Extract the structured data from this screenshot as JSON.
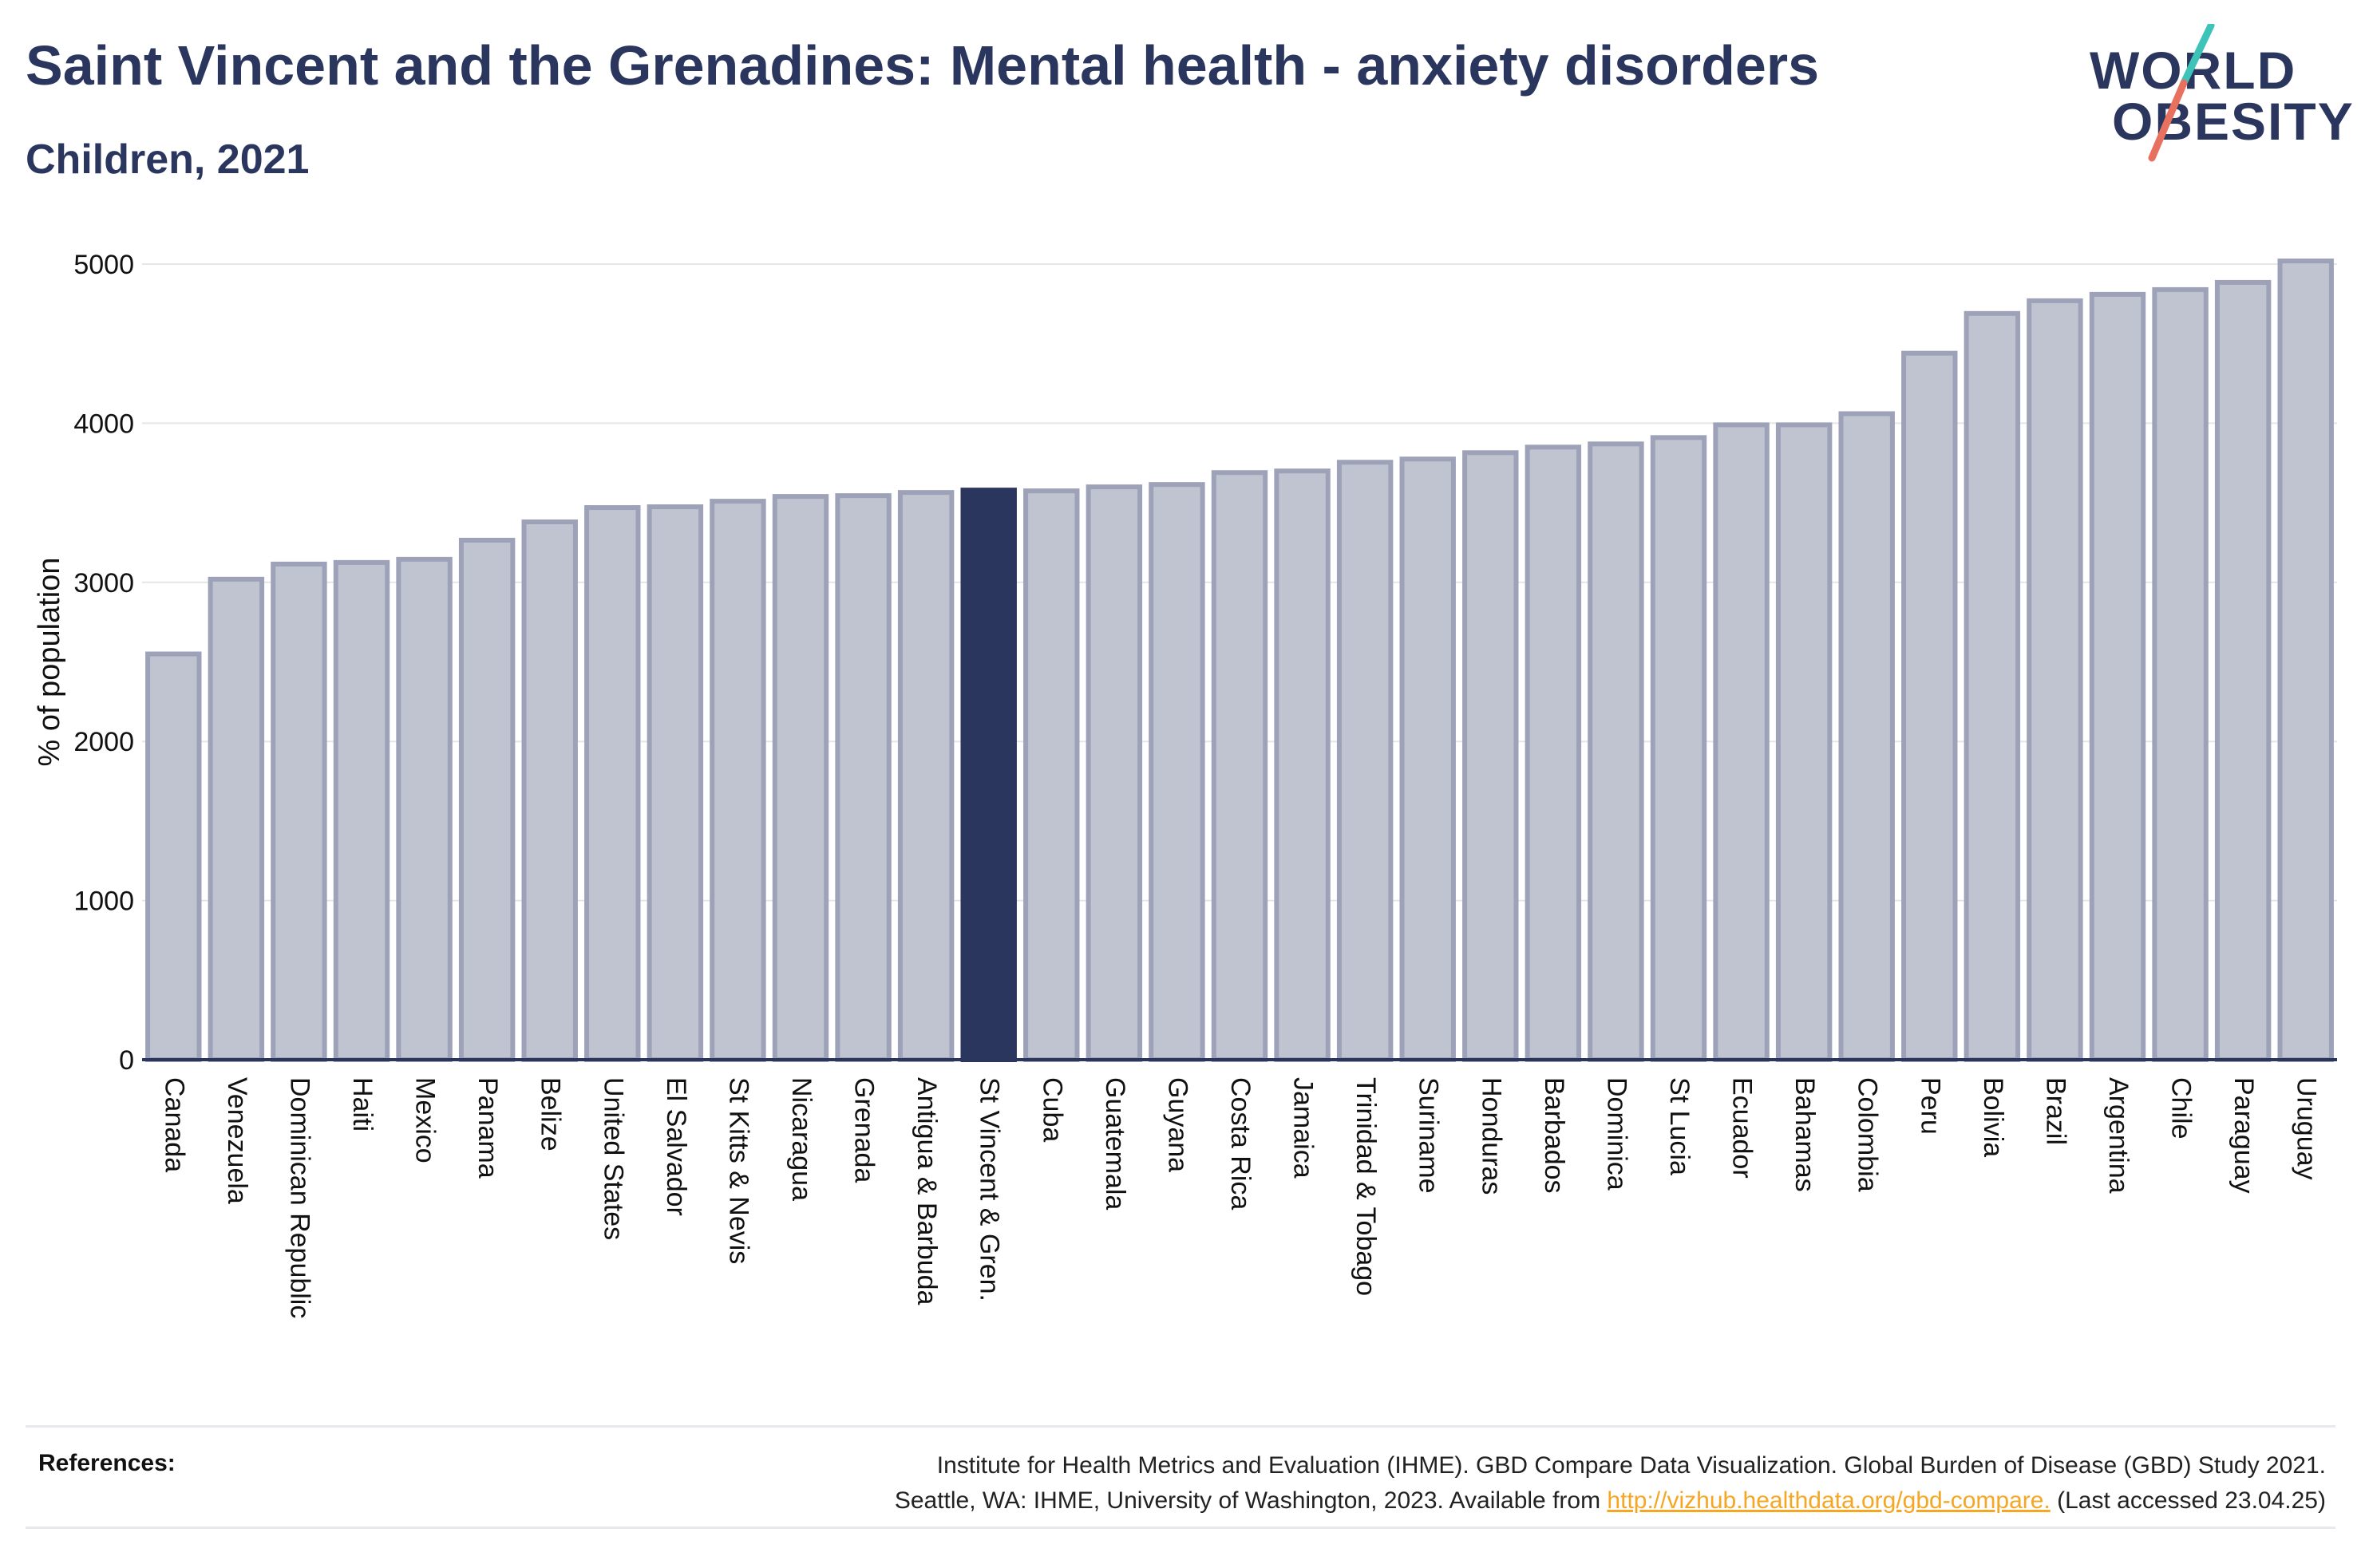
{
  "header": {
    "title": "Saint Vincent and the Grenadines: Mental health - anxiety disorders",
    "subtitle": "Children, 2021"
  },
  "logo": {
    "line1": "WORLD",
    "line2": "OBESITY"
  },
  "colors": {
    "highlight_bar": "#2b365e",
    "other_bar_fill": "#c0c3d0",
    "other_bar_stroke": "#9da2b8",
    "title": "#2b365e",
    "link": "#f5a623",
    "logo_teal": "#3ec3b8",
    "logo_coral": "#e8705f"
  },
  "chart_data": {
    "type": "bar",
    "ylabel": "% of population",
    "ylim": [
      0,
      5000
    ],
    "yticks": [
      0,
      1000,
      2000,
      3000,
      4000,
      5000
    ],
    "highlight": "St Vincent & Gren.",
    "grid": true,
    "categories": [
      "Canada",
      "Venezuela",
      "Dominican Republic",
      "Haiti",
      "Mexico",
      "Panama",
      "Belize",
      "United States",
      "El Salvador",
      "St Kitts & Nevis",
      "Nicaragua",
      "Grenada",
      "Antigua & Barbuda",
      "St Vincent & Gren.",
      "Cuba",
      "Guatemala",
      "Guyana",
      "Costa Rica",
      "Jamaica",
      "Trinidad & Tobago",
      "Suriname",
      "Honduras",
      "Barbados",
      "Dominica",
      "St Lucia",
      "Ecuador",
      "Bahamas",
      "Colombia",
      "Peru",
      "Bolivia",
      "Brazil",
      "Argentina",
      "Chile",
      "Paraguay",
      "Uruguay"
    ],
    "values": [
      2550,
      3020,
      3115,
      3125,
      3145,
      3265,
      3380,
      3470,
      3475,
      3510,
      3540,
      3545,
      3565,
      3580,
      3575,
      3600,
      3615,
      3690,
      3700,
      3755,
      3775,
      3815,
      3850,
      3870,
      3910,
      3990,
      3990,
      4060,
      4440,
      4690,
      4770,
      4810,
      4840,
      4885,
      5020
    ]
  },
  "references": {
    "label": "References:",
    "line1": "Institute for Health Metrics and Evaluation (IHME). GBD Compare Data Visualization. Global Burden of Disease (GBD) Study 2021.",
    "line2_prefix": "Seattle, WA: IHME, University of Washington, 2023. Available from ",
    "link": "http://vizhub.healthdata.org/gbd-compare.",
    "line2_suffix": " (Last accessed 23.04.25)"
  }
}
